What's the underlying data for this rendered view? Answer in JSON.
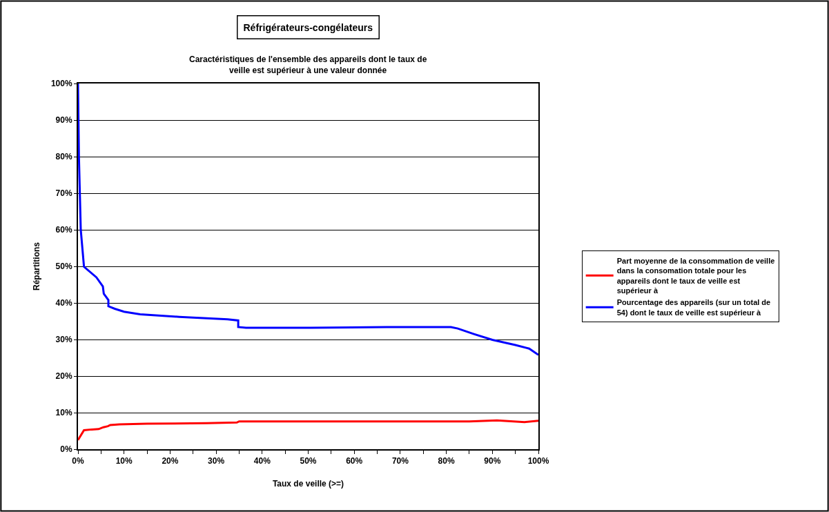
{
  "chart_data": {
    "type": "line",
    "title": "Réfrigérateurs-congélateurs",
    "subtitle": "Caractéristiques de l'ensemble des appareils dont le taux de veille est supérieur à une valeur donnée",
    "xlabel": "Taux de veille (>=)",
    "ylabel": "Répartitions",
    "series": [
      {
        "name": "Part moyenne de la consommation de veille dans la consomation totale pour les appareils dont le taux de veille est supérieur à",
        "color": "#ff0000",
        "x": [
          0,
          1.3,
          3.0,
          4.5,
          5.5,
          6.5,
          7.0,
          9.0,
          15.0,
          28.0,
          34.5,
          35.0,
          67.0,
          85.0,
          91.0,
          97.0,
          100
        ],
        "values": [
          2.5,
          5.2,
          5.4,
          5.5,
          6.0,
          6.3,
          6.6,
          6.8,
          7.0,
          7.1,
          7.3,
          7.6,
          7.6,
          7.6,
          7.9,
          7.4,
          7.8
        ]
      },
      {
        "name": "Pourcentage des appareils (sur un total de 54) dont le taux de veille est supérieur à",
        "color": "#0000ff",
        "x": [
          0,
          0.1,
          0.2,
          0.4,
          0.6,
          1.3,
          4.0,
          5.4,
          5.6,
          6.6,
          6.6,
          8.0,
          10.0,
          13.5,
          22.0,
          28.0,
          32.5,
          34.8,
          34.8,
          36.5,
          50.5,
          67.0,
          81.0,
          82.5,
          86.0,
          90.0,
          95.0,
          98.0,
          100
        ],
        "values": [
          100,
          90,
          80,
          70,
          60,
          49.9,
          47.0,
          44.5,
          42.5,
          40.8,
          39.1,
          38.4,
          37.6,
          36.9,
          36.2,
          35.8,
          35.5,
          35.2,
          33.4,
          33.2,
          33.2,
          33.4,
          33.4,
          33.0,
          31.5,
          29.9,
          28.5,
          27.5,
          25.8
        ]
      }
    ],
    "xlim": [
      0,
      100
    ],
    "xticks": [
      {
        "value": 0,
        "label": "0%"
      },
      {
        "value": 5,
        "label": null
      },
      {
        "value": 10,
        "label": "10%"
      },
      {
        "value": 15,
        "label": null
      },
      {
        "value": 20,
        "label": "20%"
      },
      {
        "value": 25,
        "label": null
      },
      {
        "value": 30,
        "label": "30%"
      },
      {
        "value": 35,
        "label": null
      },
      {
        "value": 40,
        "label": "40%"
      },
      {
        "value": 45,
        "label": null
      },
      {
        "value": 50,
        "label": "50%"
      },
      {
        "value": 55,
        "label": null
      },
      {
        "value": 60,
        "label": "60%"
      },
      {
        "value": 65,
        "label": null
      },
      {
        "value": 70,
        "label": "70%"
      },
      {
        "value": 75,
        "label": null
      },
      {
        "value": 80,
        "label": "80%"
      },
      {
        "value": 85,
        "label": null
      },
      {
        "value": 90,
        "label": "90%"
      },
      {
        "value": 95,
        "label": null
      },
      {
        "value": 100,
        "label": "100%"
      }
    ],
    "ylim": [
      0,
      100
    ],
    "yticks": [
      {
        "value": 0,
        "label": "0%"
      },
      {
        "value": 10,
        "label": "10%"
      },
      {
        "value": 20,
        "label": "20%"
      },
      {
        "value": 30,
        "label": "30%"
      },
      {
        "value": 40,
        "label": "40%"
      },
      {
        "value": 50,
        "label": "50%"
      },
      {
        "value": 60,
        "label": "60%"
      },
      {
        "value": 70,
        "label": "70%"
      },
      {
        "value": 80,
        "label": "80%"
      },
      {
        "value": 90,
        "label": "90%"
      },
      {
        "value": 100,
        "label": "100%"
      }
    ],
    "grid": "y",
    "legend": "right",
    "marker": "none",
    "line_style": "solid"
  }
}
